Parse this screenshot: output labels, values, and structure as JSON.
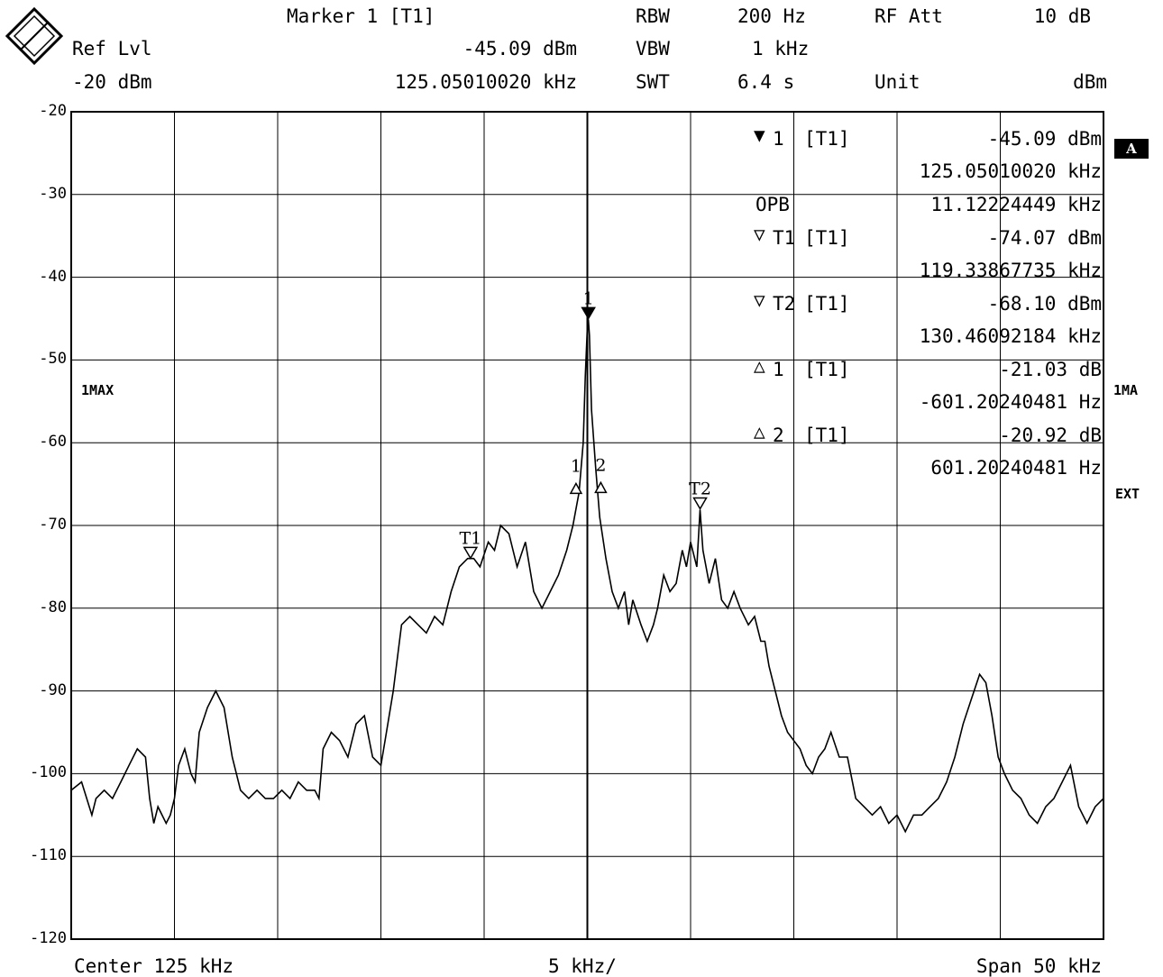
{
  "header": {
    "marker_label": "Marker 1 [T1]",
    "marker_level": "-45.09 dBm",
    "marker_freq": "125.05010020 kHz",
    "ref_lvl_label": "Ref Lvl",
    "ref_lvl_value": "-20 dBm",
    "rbw_label": "RBW",
    "rbw_value": "200 Hz",
    "vbw_label": "VBW",
    "vbw_value": "1 kHz",
    "swt_label": "SWT",
    "swt_value": "6.4 s",
    "rfatt_label": "RF Att",
    "rfatt_value": "10 dB",
    "unit_label": "Unit",
    "unit_value": "dBm"
  },
  "side_labels": {
    "trace_left": "1MAX",
    "badge": "A",
    "trace_right": "1MA",
    "ext": "EXT"
  },
  "marker_table": [
    {
      "sym": "▼",
      "name": "1",
      "trace": "[T1]",
      "v1": "-45.09 dBm",
      "v2": "125.05010020 kHz"
    },
    {
      "sym": "",
      "name": "OPB",
      "trace": "",
      "v1": "11.12224449 kHz",
      "v2": ""
    },
    {
      "sym": "▽",
      "name": "T1",
      "trace": "[T1]",
      "v1": "-74.07 dBm",
      "v2": "119.33867735 kHz"
    },
    {
      "sym": "▽",
      "name": "T2",
      "trace": "[T1]",
      "v1": "-68.10 dBm",
      "v2": "130.46092184 kHz"
    },
    {
      "sym": "△",
      "name": "1",
      "trace": "[T1]",
      "v1": "-21.03 dB",
      "v2": "-601.20240481 Hz"
    },
    {
      "sym": "△",
      "name": "2",
      "trace": "[T1]",
      "v1": "-20.92 dB",
      "v2": "601.20240481 Hz"
    }
  ],
  "footer": {
    "center": "Center 125 kHz",
    "div": "5 kHz/",
    "span": "Span 50 kHz"
  },
  "colors": {
    "trace": "#000000",
    "grid": "#000000",
    "background": "#ffffff"
  },
  "chart_data": {
    "type": "line",
    "x_unit": "kHz",
    "y_unit": "dBm",
    "xlim": [
      100,
      150
    ],
    "ylim": [
      -120,
      -20
    ],
    "grid": true,
    "yticks": [
      -20,
      -30,
      -40,
      -50,
      -60,
      -70,
      -80,
      -90,
      -100,
      -110,
      -120
    ],
    "yticklabels": [
      "-20",
      "-30",
      "-40",
      "-50",
      "-60",
      "-70",
      "-80",
      "-90",
      "-100",
      "-110",
      "-120"
    ],
    "series": [
      {
        "x": [
          100.0,
          100.5,
          101.0,
          101.2,
          101.6,
          102.0,
          102.4,
          102.8,
          103.2,
          103.6,
          103.8,
          104.0,
          104.2,
          104.6,
          104.8,
          105.0,
          105.2,
          105.5,
          105.8,
          106.0,
          106.2,
          106.6,
          107.0,
          107.4,
          107.8,
          108.2,
          108.6,
          109.0,
          109.4,
          109.8,
          110.2,
          110.6,
          111.0,
          111.4,
          111.8,
          112.0,
          112.2,
          112.6,
          113.0,
          113.4,
          113.8,
          114.2,
          114.6,
          115.0,
          115.2,
          115.6,
          116.0,
          116.4,
          116.8,
          117.2,
          117.6,
          118.0,
          118.4,
          118.8,
          119.2,
          119.5,
          119.8,
          120.2,
          120.5,
          120.8,
          121.2,
          121.6,
          122.0,
          122.4,
          122.8,
          123.2,
          123.6,
          124.0,
          124.3,
          124.6,
          124.8,
          124.9,
          125.0,
          125.05,
          125.1,
          125.2,
          125.4,
          125.6,
          125.9,
          126.2,
          126.5,
          126.8,
          127.0,
          127.2,
          127.6,
          127.9,
          128.2,
          128.4,
          128.7,
          129.0,
          129.3,
          129.6,
          129.8,
          130.0,
          130.3,
          130.46,
          130.6,
          130.9,
          131.2,
          131.5,
          131.8,
          132.1,
          132.4,
          132.8,
          133.1,
          133.4,
          133.6,
          133.8,
          134.1,
          134.4,
          134.7,
          135.0,
          135.3,
          135.6,
          135.9,
          136.2,
          136.5,
          136.8,
          137.2,
          137.6,
          138.0,
          138.4,
          138.8,
          139.2,
          139.6,
          140.0,
          140.4,
          140.8,
          141.2,
          141.6,
          142.0,
          142.4,
          142.8,
          143.2,
          143.6,
          144.0,
          144.3,
          144.6,
          144.9,
          145.2,
          145.6,
          146.0,
          146.4,
          146.8,
          147.2,
          147.6,
          148.0,
          148.4,
          148.8,
          149.2,
          149.6,
          150.0
        ],
        "y": [
          -102,
          -101,
          -105,
          -103,
          -102,
          -103,
          -101,
          -99,
          -97,
          -98,
          -103,
          -106,
          -104,
          -106,
          -105,
          -103,
          -99,
          -97,
          -100,
          -101,
          -95,
          -92,
          -90,
          -92,
          -98,
          -102,
          -103,
          -102,
          -103,
          -103,
          -102,
          -103,
          -101,
          -102,
          -102,
          -103,
          -97,
          -95,
          -96,
          -98,
          -94,
          -93,
          -98,
          -99,
          -96,
          -90,
          -82,
          -81,
          -82,
          -83,
          -81,
          -82,
          -78,
          -75,
          -74,
          -74,
          -75,
          -72,
          -73,
          -70,
          -71,
          -75,
          -72,
          -78,
          -80,
          -78,
          -76,
          -73,
          -70,
          -66,
          -60,
          -52,
          -46,
          -45.1,
          -47,
          -56,
          -63,
          -69,
          -74,
          -78,
          -80,
          -78,
          -82,
          -79,
          -82,
          -84,
          -82,
          -80,
          -76,
          -78,
          -77,
          -73,
          -75,
          -72,
          -75,
          -68.1,
          -73,
          -77,
          -74,
          -79,
          -80,
          -78,
          -80,
          -82,
          -81,
          -84,
          -84,
          -87,
          -90,
          -93,
          -95,
          -96,
          -97,
          -99,
          -100,
          -98,
          -97,
          -95,
          -98,
          -98,
          -103,
          -104,
          -105,
          -104,
          -106,
          -105,
          -107,
          -105,
          -105,
          -104,
          -103,
          -101,
          -98,
          -94,
          -91,
          -88,
          -89,
          -93,
          -98,
          -100,
          -102,
          -103,
          -105,
          -106,
          -104,
          -103,
          -101,
          -99,
          -104,
          -106,
          -104,
          -103
        ]
      }
    ],
    "markers": [
      {
        "label": "1",
        "type": "filled-down",
        "x": 125.05,
        "y": -45.09
      },
      {
        "label": "T1",
        "type": "open-down",
        "x": 119.34,
        "y": -74.07
      },
      {
        "label": "T2",
        "type": "open-down",
        "x": 130.46,
        "y": -68.1
      },
      {
        "label": "1",
        "type": "open-up",
        "x": 124.45,
        "y": -66.12
      },
      {
        "label": "2",
        "type": "open-up",
        "x": 125.65,
        "y": -66.01
      }
    ]
  }
}
